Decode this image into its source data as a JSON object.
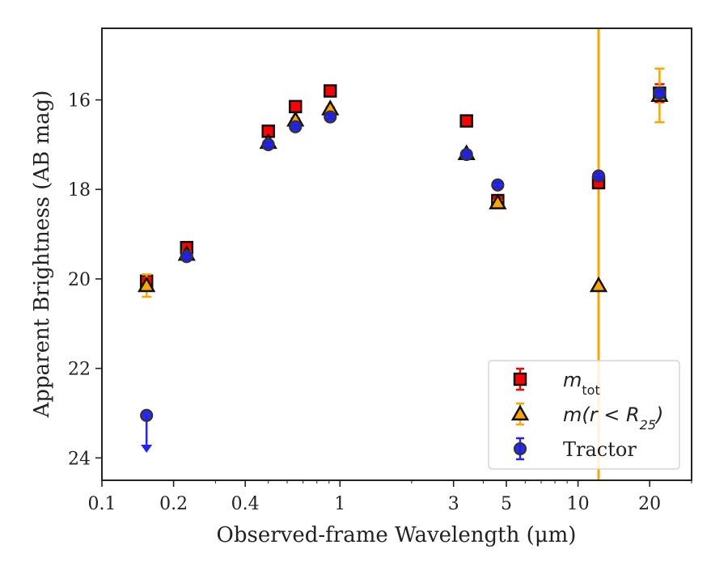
{
  "chart_data": {
    "type": "scatter",
    "xlabel": "Observed-frame Wavelength (μm)",
    "ylabel": "Apparent Brightness (AB mag)",
    "xscale": "log",
    "xlim": [
      0.1,
      30
    ],
    "ylim": [
      24.5,
      14.4
    ],
    "y_inverted": true,
    "grid": false,
    "legend_position": "bottom-right",
    "x_ticks": [
      {
        "value": 0.1,
        "label": "0.1"
      },
      {
        "value": 0.2,
        "label": "0.2"
      },
      {
        "value": 0.4,
        "label": "0.4"
      },
      {
        "value": 1,
        "label": "1"
      },
      {
        "value": 3,
        "label": "3"
      },
      {
        "value": 5,
        "label": "5"
      },
      {
        "value": 10,
        "label": "10"
      },
      {
        "value": 20,
        "label": "20"
      }
    ],
    "y_ticks": [
      {
        "value": 16,
        "label": "16"
      },
      {
        "value": 18,
        "label": "18"
      },
      {
        "value": 20,
        "label": "20"
      },
      {
        "value": 22,
        "label": "22"
      },
      {
        "value": 24,
        "label": "24"
      }
    ],
    "vertical_line": {
      "x": 12.2,
      "color": "#ffa500"
    },
    "series": [
      {
        "name_main": "m",
        "name_sub": "tot",
        "marker": "square",
        "color": "#ff0000",
        "errcolor": "#ff0000",
        "points": [
          {
            "x": 0.154,
            "y": 20.05,
            "err": 0.1
          },
          {
            "x": 0.227,
            "y": 19.3,
            "err": 0.05
          },
          {
            "x": 0.5,
            "y": 16.7,
            "err": 0.04
          },
          {
            "x": 0.65,
            "y": 16.15,
            "err": 0.04
          },
          {
            "x": 0.91,
            "y": 15.8,
            "err": 0.04
          },
          {
            "x": 3.4,
            "y": 16.47,
            "err": 0.04
          },
          {
            "x": 4.6,
            "y": 18.25,
            "err": 0.05
          },
          {
            "x": 12.2,
            "y": 17.85,
            "err": 0.08
          },
          {
            "x": 22.0,
            "y": 15.85,
            "err": 0.2
          }
        ]
      },
      {
        "name_main": "m(r < R",
        "name_sub": "25",
        "name_end": ")",
        "marker": "triangle",
        "color": "#ffa500",
        "errcolor": "#ffa500",
        "points": [
          {
            "x": 0.154,
            "y": 20.15,
            "err": 0.25
          },
          {
            "x": 0.227,
            "y": 19.45,
            "err": 0.05
          },
          {
            "x": 0.5,
            "y": 16.95,
            "err": 0.04
          },
          {
            "x": 0.65,
            "y": 16.45,
            "err": 0.04
          },
          {
            "x": 0.91,
            "y": 16.2,
            "err": 0.04
          },
          {
            "x": 3.4,
            "y": 17.2,
            "err": 0.04
          },
          {
            "x": 4.6,
            "y": 18.3,
            "err": 0.05
          },
          {
            "x": 12.2,
            "y": 20.15,
            "err": 0.0
          },
          {
            "x": 22.0,
            "y": 15.9,
            "err": 0.6
          }
        ]
      },
      {
        "name": "Tractor",
        "marker": "circle",
        "color": "#1f1fe6",
        "errcolor": "#2222ff",
        "points": [
          {
            "x": 0.154,
            "y": 23.05,
            "err": 0.0,
            "upper_limit": true
          },
          {
            "x": 0.227,
            "y": 19.5,
            "err": 0.04
          },
          {
            "x": 0.5,
            "y": 17.0,
            "err": 0.04
          },
          {
            "x": 0.65,
            "y": 16.6,
            "err": 0.04
          },
          {
            "x": 0.91,
            "y": 16.38,
            "err": 0.04
          },
          {
            "x": 3.4,
            "y": 17.22,
            "err": 0.04
          },
          {
            "x": 4.6,
            "y": 17.9,
            "err": 0.05
          },
          {
            "x": 12.2,
            "y": 17.7,
            "err": 0.05
          },
          {
            "x": 22.0,
            "y": 15.85,
            "err": 0.1
          }
        ]
      }
    ]
  }
}
